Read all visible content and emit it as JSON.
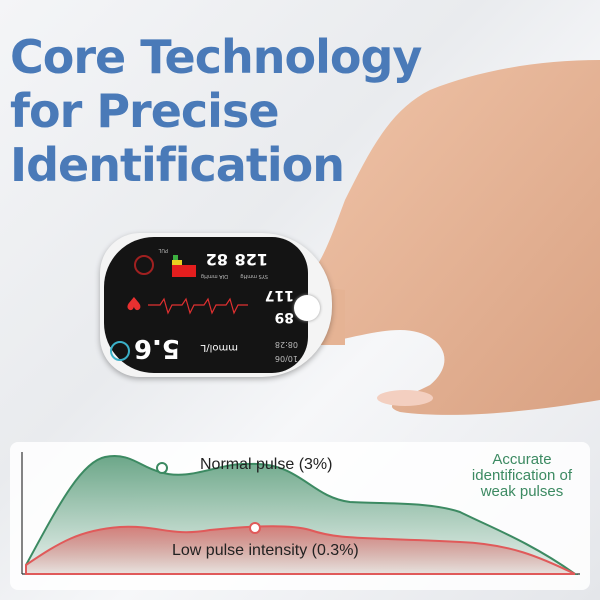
{
  "headline": [
    "Core Technology",
    "for Precise",
    "Identification"
  ],
  "device": {
    "sys_label": "SYS mmHg",
    "sys": "128",
    "dia_label": "DIA mmHg",
    "dia": "82",
    "pul_label": "PUL",
    "pulse": "117",
    "spo2": "89",
    "glucose": "5.6",
    "glucose_unit": "mmol/L",
    "date": "10/06",
    "time": "08:28"
  },
  "chart": {
    "normal_label": "Normal pulse (3%)",
    "low_label": "Low pulse intensity (0.3%)",
    "callout": [
      "Accurate",
      "identification of",
      "weak pulses"
    ],
    "colors": {
      "normal": "#3c8a62",
      "low": "#e05a5a"
    }
  },
  "colors": {
    "headline": "#4a7ab8"
  }
}
